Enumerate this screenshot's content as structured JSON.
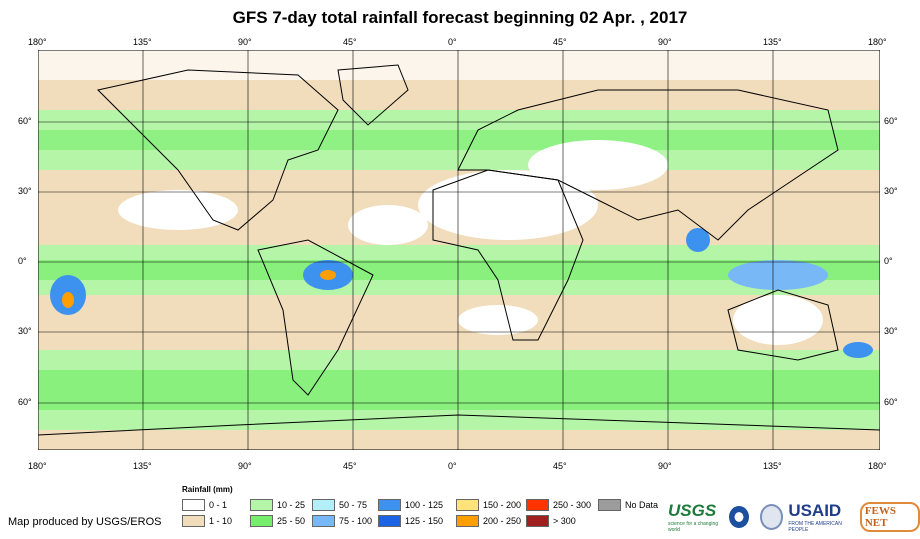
{
  "title": "GFS 7-day total rainfall forecast beginning 02 Apr. , 2017",
  "lon_labels": [
    "180°",
    "135°",
    "90°",
    "45°",
    "0°",
    "45°",
    "90°",
    "135°",
    "180°"
  ],
  "lat_labels": [
    "60°",
    "30°",
    "0°",
    "30°",
    "60°"
  ],
  "legend": {
    "title": "Rainfall (mm)",
    "items": [
      {
        "label": "0 - 1",
        "color": "#ffffff"
      },
      {
        "label": "1 - 10",
        "color": "#f1dcbb"
      },
      {
        "label": "10 - 25",
        "color": "#b4f5a8"
      },
      {
        "label": "25 - 50",
        "color": "#76ee6b"
      },
      {
        "label": "50 - 75",
        "color": "#b3eff8"
      },
      {
        "label": "75 - 100",
        "color": "#78b8f7"
      },
      {
        "label": "100 - 125",
        "color": "#3e92ef"
      },
      {
        "label": "125 - 150",
        "color": "#1c63e6"
      },
      {
        "label": "150 - 200",
        "color": "#ffe27a"
      },
      {
        "label": "200 - 250",
        "color": "#ff9e00"
      },
      {
        "label": "250 - 300",
        "color": "#ff3300"
      },
      {
        "label": "> 300",
        "color": "#a02020"
      },
      {
        "label": "No Data",
        "color": "#9c9c9c"
      }
    ]
  },
  "credit": "Map produced by USGS/EROS",
  "logos": {
    "usgs": "USGS",
    "usgs_tag": "science for a changing world",
    "usaid": "USAID",
    "usaid_tag": "FROM THE AMERICAN PEOPLE",
    "fews": "FEWS NET"
  }
}
